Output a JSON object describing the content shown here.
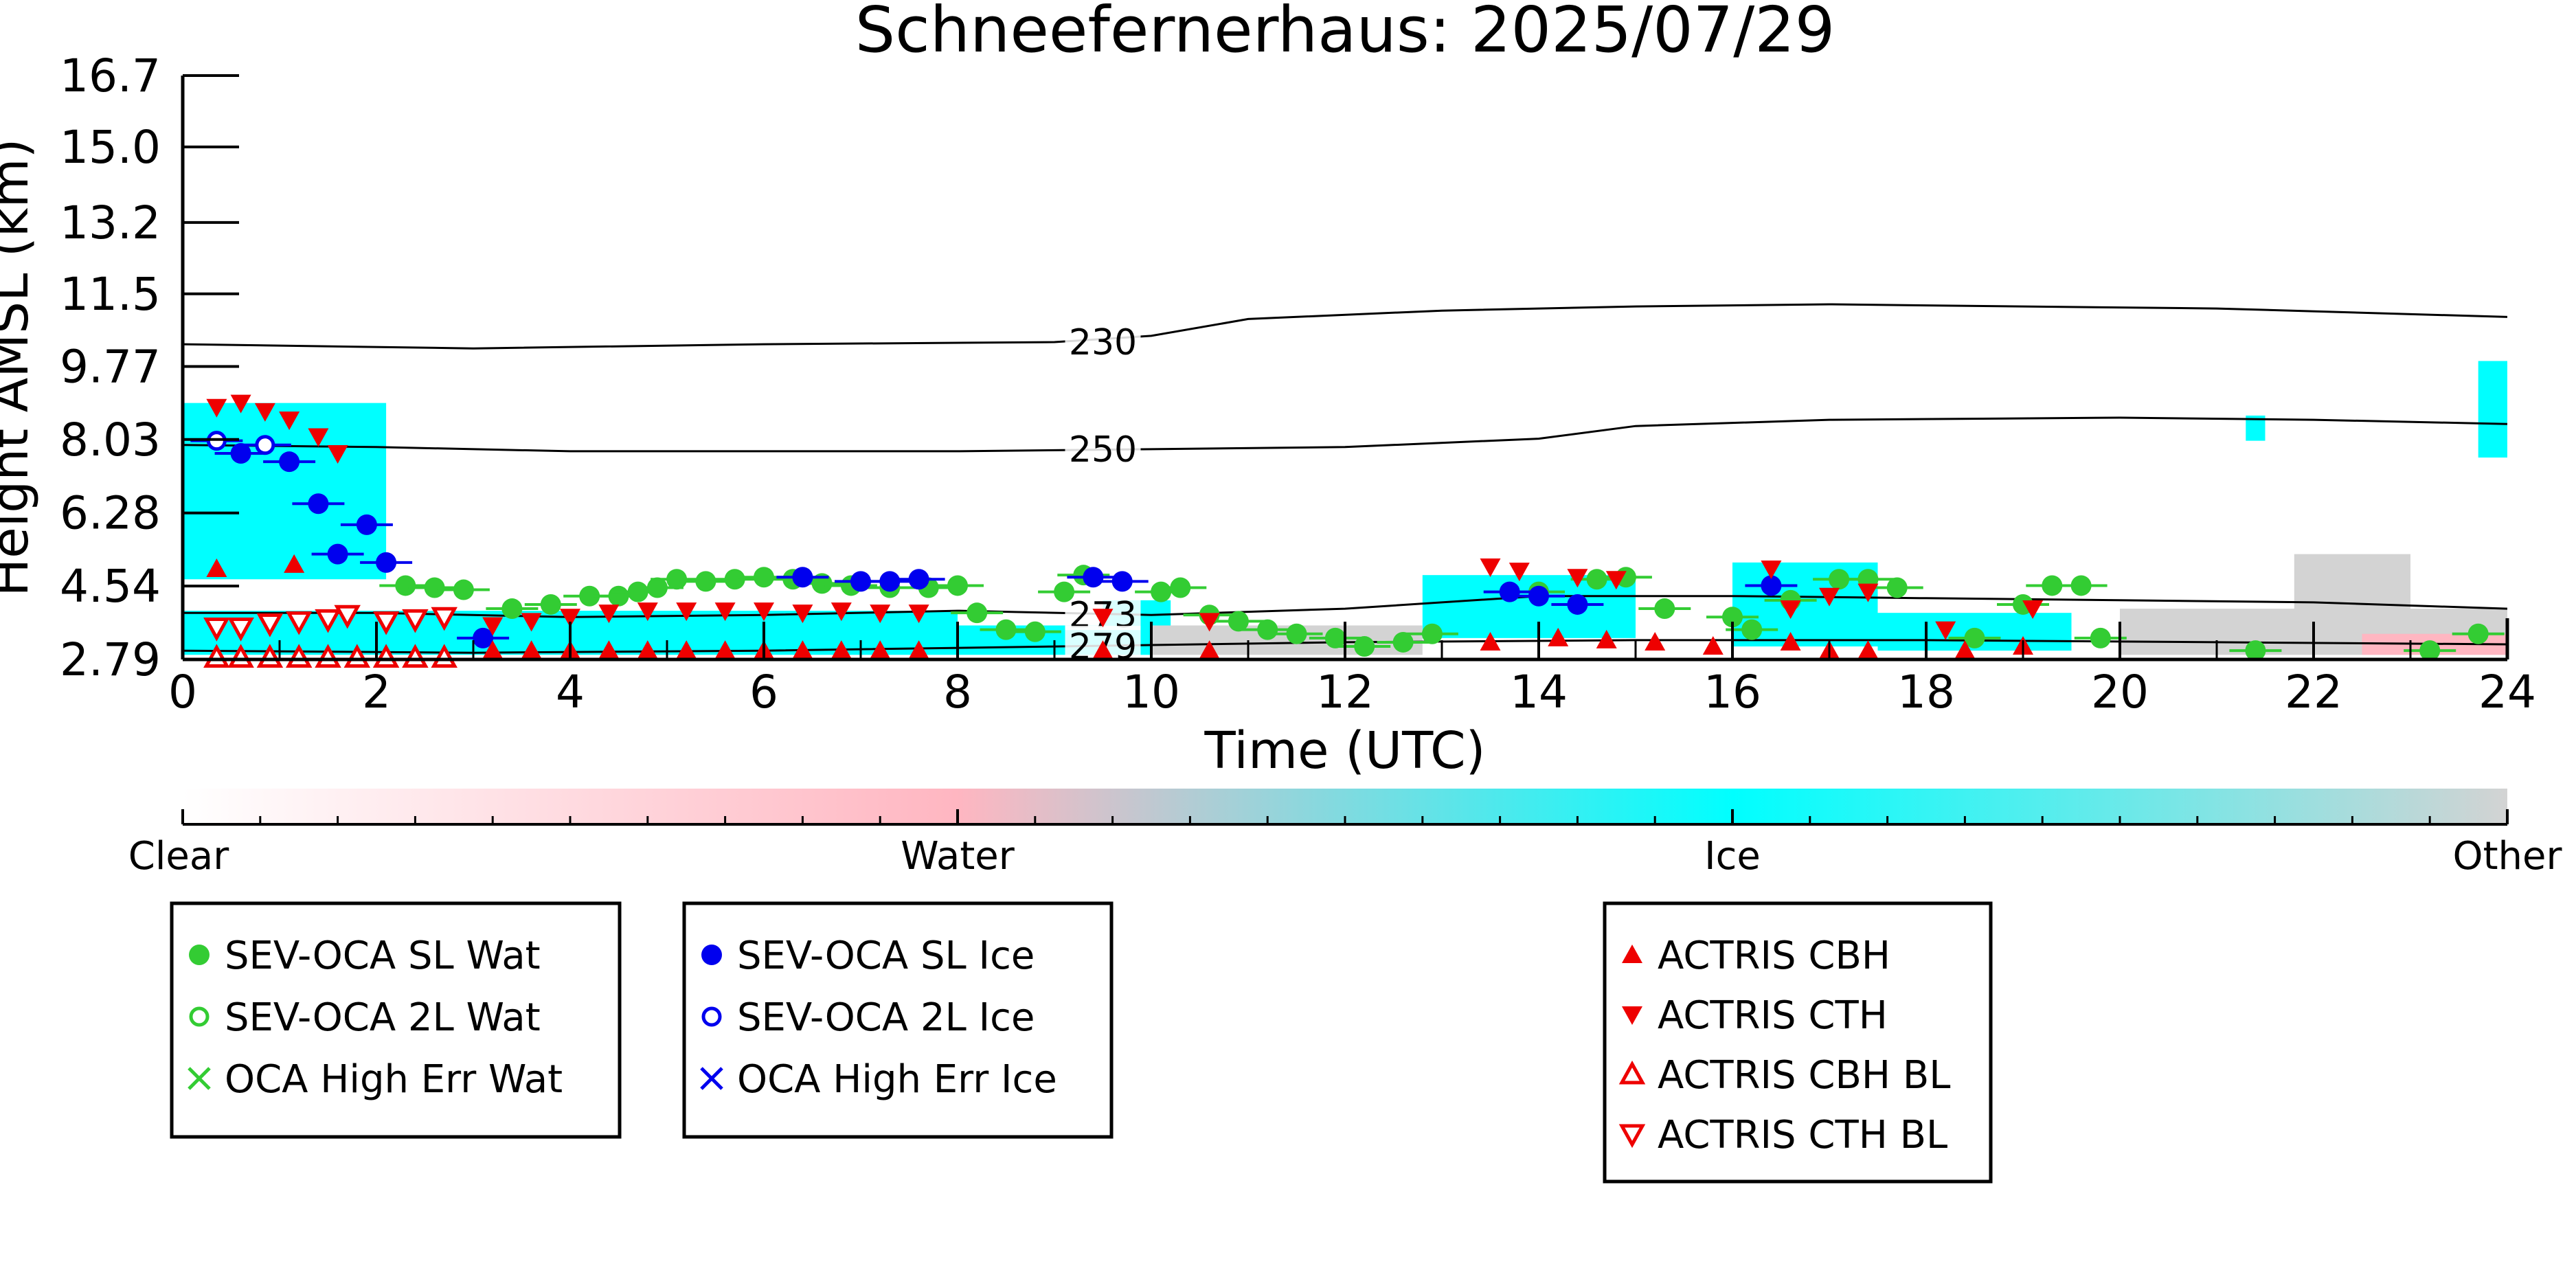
{
  "chart_data": {
    "type": "scatter",
    "title": "Schneefernerhaus: 2025/07/29",
    "xlabel": "Time (UTC)",
    "ylabel": "Height AMSL (km)",
    "xlim": [
      0,
      24
    ],
    "ylim": [
      2.79,
      16.7
    ],
    "xticks": [
      "0",
      "2",
      "4",
      "6",
      "8",
      "10",
      "12",
      "14",
      "16",
      "18",
      "20",
      "22",
      "24"
    ],
    "yticks": [
      "2.79",
      "4.54",
      "6.28",
      "8.03",
      "9.77",
      "11.5",
      "13.2",
      "15.0",
      "16.7"
    ],
    "colorbar": {
      "labels": [
        "Clear",
        "Water",
        "Ice",
        "Other"
      ],
      "colors": [
        "#ffffff",
        "#ffb6c1",
        "#00ffff",
        "#d3d3d3"
      ]
    },
    "colors": {
      "water": "#33cc33",
      "ice": "#0000ee",
      "actris": "#ee0000",
      "cloud_ice": "#00ffff",
      "cloud_other": "#d3d3d3",
      "cloud_water": "#ffb6c1"
    },
    "temperature_contours": [
      {
        "label": "230",
        "points": [
          [
            0,
            10.3
          ],
          [
            3,
            10.2
          ],
          [
            6,
            10.3
          ],
          [
            9,
            10.35
          ],
          [
            10,
            10.5
          ],
          [
            11,
            10.9
          ],
          [
            13,
            11.1
          ],
          [
            15,
            11.2
          ],
          [
            17,
            11.25
          ],
          [
            19,
            11.2
          ],
          [
            21,
            11.15
          ],
          [
            24,
            10.95
          ]
        ]
      },
      {
        "label": "250",
        "points": [
          [
            0,
            7.9
          ],
          [
            2,
            7.85
          ],
          [
            4,
            7.75
          ],
          [
            6,
            7.75
          ],
          [
            8,
            7.75
          ],
          [
            10,
            7.8
          ],
          [
            12,
            7.85
          ],
          [
            14,
            8.05
          ],
          [
            15,
            8.35
          ],
          [
            17,
            8.5
          ],
          [
            20,
            8.55
          ],
          [
            22,
            8.5
          ],
          [
            24,
            8.4
          ]
        ]
      },
      {
        "label": "273",
        "points": [
          [
            0,
            3.9
          ],
          [
            2,
            3.9
          ],
          [
            4,
            3.8
          ],
          [
            6,
            3.85
          ],
          [
            8,
            3.95
          ],
          [
            10,
            3.85
          ],
          [
            12,
            4.0
          ],
          [
            14,
            4.3
          ],
          [
            16,
            4.3
          ],
          [
            18,
            4.25
          ],
          [
            20,
            4.2
          ],
          [
            22,
            4.15
          ],
          [
            24,
            4.0
          ]
        ]
      },
      {
        "label": "279",
        "points": [
          [
            0,
            3.0
          ],
          [
            3,
            2.95
          ],
          [
            6,
            3.0
          ],
          [
            9,
            3.1
          ],
          [
            12,
            3.2
          ],
          [
            15,
            3.25
          ],
          [
            18,
            3.25
          ],
          [
            21,
            3.2
          ],
          [
            24,
            3.15
          ]
        ]
      }
    ],
    "cloud_regions": [
      {
        "class": "ice",
        "x0": 0.0,
        "x1": 2.1,
        "y0": 4.7,
        "y1": 8.9
      },
      {
        "class": "ice",
        "x0": 0.0,
        "x1": 8.0,
        "y0": 2.9,
        "y1": 3.95
      },
      {
        "class": "ice",
        "x0": 8.0,
        "x1": 10.0,
        "y0": 2.9,
        "y1": 3.6
      },
      {
        "class": "ice",
        "x0": 9.5,
        "x1": 10.2,
        "y0": 3.0,
        "y1": 4.2
      },
      {
        "class": "ice",
        "x0": 12.8,
        "x1": 15.0,
        "y0": 3.3,
        "y1": 4.8
      },
      {
        "class": "ice",
        "x0": 16.0,
        "x1": 17.5,
        "y0": 3.1,
        "y1": 5.1
      },
      {
        "class": "ice",
        "x0": 17.5,
        "x1": 19.5,
        "y0": 3.0,
        "y1": 3.9
      },
      {
        "class": "ice",
        "x0": 23.7,
        "x1": 24.0,
        "y0": 7.6,
        "y1": 9.9
      },
      {
        "class": "ice",
        "x0": 21.3,
        "x1": 21.5,
        "y0": 8.0,
        "y1": 8.6
      },
      {
        "class": "other",
        "x0": 10.0,
        "x1": 12.8,
        "y0": 2.9,
        "y1": 3.6
      },
      {
        "class": "other",
        "x0": 20.0,
        "x1": 24.0,
        "y0": 2.9,
        "y1": 4.0
      },
      {
        "class": "other",
        "x0": 21.8,
        "x1": 23.0,
        "y0": 3.0,
        "y1": 5.3
      },
      {
        "class": "water",
        "x0": 22.5,
        "x1": 24.0,
        "y0": 2.9,
        "y1": 3.4
      }
    ],
    "series": [
      {
        "name": "SEV-OCA SL Wat",
        "marker": "filled-circle",
        "color": "#33cc33",
        "points": [
          [
            2.3,
            4.55
          ],
          [
            2.6,
            4.5
          ],
          [
            2.9,
            4.45
          ],
          [
            3.4,
            4.0
          ],
          [
            3.8,
            4.1
          ],
          [
            4.2,
            4.3
          ],
          [
            4.5,
            4.3
          ],
          [
            4.7,
            4.4
          ],
          [
            4.9,
            4.5
          ],
          [
            5.1,
            4.7
          ],
          [
            5.4,
            4.65
          ],
          [
            5.7,
            4.7
          ],
          [
            6.0,
            4.75
          ],
          [
            6.3,
            4.7
          ],
          [
            6.6,
            4.6
          ],
          [
            6.9,
            4.55
          ],
          [
            7.3,
            4.5
          ],
          [
            7.7,
            4.5
          ],
          [
            8.0,
            4.55
          ],
          [
            8.2,
            3.9
          ],
          [
            8.5,
            3.5
          ],
          [
            8.8,
            3.45
          ],
          [
            9.1,
            4.4
          ],
          [
            9.3,
            4.8
          ],
          [
            10.1,
            4.4
          ],
          [
            10.3,
            4.5
          ],
          [
            10.6,
            3.85
          ],
          [
            10.9,
            3.7
          ],
          [
            11.2,
            3.5
          ],
          [
            11.5,
            3.4
          ],
          [
            11.9,
            3.3
          ],
          [
            12.2,
            3.1
          ],
          [
            12.6,
            3.2
          ],
          [
            12.9,
            3.4
          ],
          [
            14.0,
            4.4
          ],
          [
            14.6,
            4.7
          ],
          [
            14.9,
            4.75
          ],
          [
            15.3,
            4.0
          ],
          [
            16.0,
            3.8
          ],
          [
            16.2,
            3.5
          ],
          [
            16.6,
            4.2
          ],
          [
            17.1,
            4.7
          ],
          [
            17.4,
            4.7
          ],
          [
            17.7,
            4.5
          ],
          [
            18.5,
            3.3
          ],
          [
            19.0,
            4.1
          ],
          [
            19.3,
            4.55
          ],
          [
            19.6,
            4.55
          ],
          [
            19.8,
            3.3
          ],
          [
            21.4,
            3.0
          ],
          [
            23.2,
            3.0
          ],
          [
            23.7,
            3.4
          ]
        ]
      },
      {
        "name": "SEV-OCA 2L Wat",
        "marker": "open-circle",
        "color": "#33cc33",
        "points": []
      },
      {
        "name": "OCA High Err Wat",
        "marker": "x",
        "color": "#33cc33",
        "points": []
      },
      {
        "name": "SEV-OCA SL Ice",
        "marker": "filled-circle",
        "color": "#0000ee",
        "points": [
          [
            0.6,
            7.7
          ],
          [
            1.1,
            7.5
          ],
          [
            1.4,
            6.5
          ],
          [
            1.6,
            5.3
          ],
          [
            1.9,
            6.0
          ],
          [
            2.1,
            5.1
          ],
          [
            3.1,
            3.3
          ],
          [
            6.4,
            4.75
          ],
          [
            7.0,
            4.65
          ],
          [
            7.3,
            4.65
          ],
          [
            7.6,
            4.7
          ],
          [
            9.4,
            4.75
          ],
          [
            9.7,
            4.65
          ],
          [
            13.7,
            4.4
          ],
          [
            14.0,
            4.3
          ],
          [
            14.4,
            4.1
          ],
          [
            16.4,
            4.55
          ]
        ]
      },
      {
        "name": "SEV-OCA 2L Ice",
        "marker": "open-circle",
        "color": "#0000ee",
        "points": [
          [
            0.35,
            8.0
          ],
          [
            0.85,
            7.9
          ]
        ]
      },
      {
        "name": "OCA High Err Ice",
        "marker": "x",
        "color": "#0000ee",
        "points": []
      },
      {
        "name": "ACTRIS CBH",
        "marker": "triangle-up",
        "color": "#ee0000",
        "points": [
          [
            0.35,
            4.95
          ],
          [
            1.15,
            5.05
          ],
          [
            3.2,
            3.0
          ],
          [
            3.6,
            3.0
          ],
          [
            4.0,
            3.0
          ],
          [
            4.4,
            3.0
          ],
          [
            4.8,
            3.0
          ],
          [
            5.2,
            3.0
          ],
          [
            5.6,
            3.0
          ],
          [
            6.0,
            3.0
          ],
          [
            6.4,
            3.0
          ],
          [
            6.8,
            3.0
          ],
          [
            7.2,
            3.0
          ],
          [
            7.6,
            3.0
          ],
          [
            9.5,
            3.0
          ],
          [
            10.6,
            3.0
          ],
          [
            13.5,
            3.2
          ],
          [
            14.2,
            3.3
          ],
          [
            14.7,
            3.25
          ],
          [
            15.2,
            3.2
          ],
          [
            15.8,
            3.1
          ],
          [
            16.6,
            3.2
          ],
          [
            17.0,
            3.0
          ],
          [
            17.4,
            3.0
          ],
          [
            18.4,
            3.0
          ],
          [
            19.0,
            3.1
          ]
        ]
      },
      {
        "name": "ACTRIS CTH",
        "marker": "triangle-down",
        "color": "#ee0000",
        "points": [
          [
            0.35,
            8.8
          ],
          [
            0.6,
            8.9
          ],
          [
            0.85,
            8.7
          ],
          [
            1.1,
            8.5
          ],
          [
            1.4,
            8.1
          ],
          [
            1.6,
            7.7
          ],
          [
            3.2,
            3.6
          ],
          [
            3.6,
            3.7
          ],
          [
            4.0,
            3.8
          ],
          [
            4.4,
            3.9
          ],
          [
            4.8,
            3.95
          ],
          [
            5.2,
            3.95
          ],
          [
            5.6,
            3.95
          ],
          [
            6.0,
            3.95
          ],
          [
            6.4,
            3.9
          ],
          [
            6.8,
            3.95
          ],
          [
            7.2,
            3.9
          ],
          [
            7.6,
            3.9
          ],
          [
            9.5,
            3.8
          ],
          [
            10.6,
            3.7
          ],
          [
            13.5,
            5.0
          ],
          [
            13.8,
            4.9
          ],
          [
            14.4,
            4.75
          ],
          [
            14.8,
            4.7
          ],
          [
            16.4,
            4.95
          ],
          [
            16.6,
            4.0
          ],
          [
            17.0,
            4.3
          ],
          [
            17.4,
            4.4
          ],
          [
            18.2,
            3.5
          ],
          [
            19.1,
            4.0
          ]
        ]
      },
      {
        "name": "ACTRIS CBH BL",
        "marker": "open-triangle-up",
        "color": "#ee0000",
        "points": [
          [
            0.35,
            2.83
          ],
          [
            0.6,
            2.83
          ],
          [
            0.9,
            2.83
          ],
          [
            1.2,
            2.83
          ],
          [
            1.5,
            2.83
          ],
          [
            1.8,
            2.83
          ],
          [
            2.1,
            2.83
          ],
          [
            2.4,
            2.83
          ],
          [
            2.7,
            2.83
          ]
        ]
      },
      {
        "name": "ACTRIS CTH BL",
        "marker": "open-triangle-down",
        "color": "#ee0000",
        "points": [
          [
            0.35,
            3.55
          ],
          [
            0.6,
            3.55
          ],
          [
            0.9,
            3.65
          ],
          [
            1.2,
            3.7
          ],
          [
            1.5,
            3.75
          ],
          [
            1.7,
            3.85
          ],
          [
            2.1,
            3.7
          ],
          [
            2.4,
            3.75
          ],
          [
            2.7,
            3.8
          ]
        ]
      }
    ],
    "legends": [
      {
        "entries": [
          "SEV-OCA SL Wat",
          "SEV-OCA 2L Wat",
          "OCA High Err Wat"
        ]
      },
      {
        "entries": [
          "SEV-OCA SL Ice",
          "SEV-OCA 2L Ice",
          "OCA High Err Ice"
        ]
      },
      {
        "entries": [
          "ACTRIS CBH",
          "ACTRIS CTH",
          "ACTRIS CBH BL",
          "ACTRIS CTH BL"
        ]
      }
    ]
  }
}
